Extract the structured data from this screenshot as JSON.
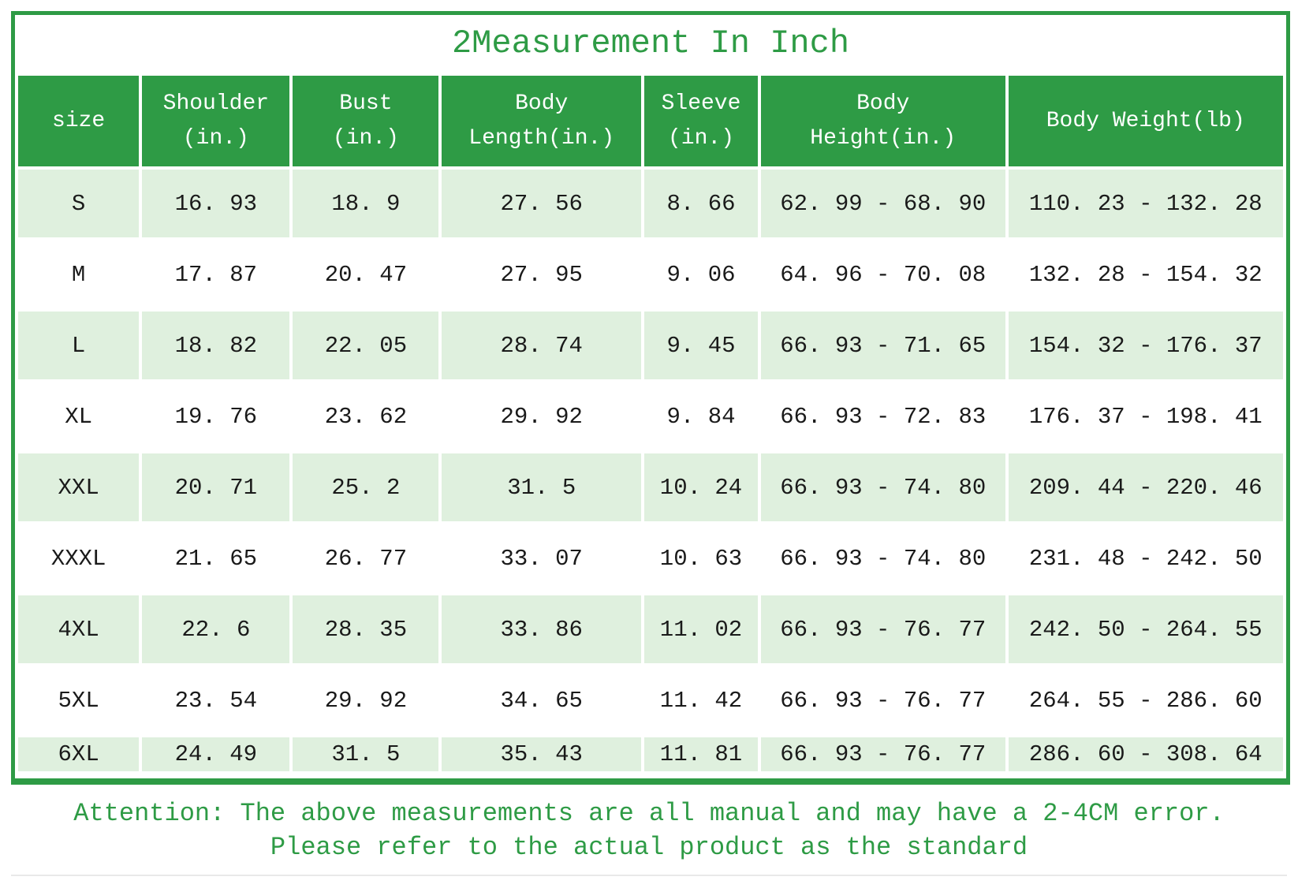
{
  "chart_data": {
    "type": "table",
    "title": "2Measurement In Inch",
    "columns": [
      "size",
      "Shoulder\n(in.)",
      "Bust\n(in.)",
      "Body\nLength(in.)",
      "Sleeve\n(in.)",
      "Body\nHeight(in.)",
      "Body Weight(lb)"
    ],
    "rows": [
      [
        "S",
        "16. 93",
        "18. 9",
        "27. 56",
        "8. 66",
        "62. 99 - 68. 90",
        "110. 23 - 132. 28"
      ],
      [
        "M",
        "17. 87",
        "20. 47",
        "27. 95",
        "9. 06",
        "64. 96 - 70. 08",
        "132. 28 - 154. 32"
      ],
      [
        "L",
        "18. 82",
        "22. 05",
        "28. 74",
        "9. 45",
        "66. 93 - 71. 65",
        "154. 32 - 176. 37"
      ],
      [
        "XL",
        "19. 76",
        "23. 62",
        "29. 92",
        "9. 84",
        "66. 93 - 72. 83",
        "176. 37 - 198. 41"
      ],
      [
        "XXL",
        "20. 71",
        "25. 2",
        "31. 5",
        "10. 24",
        "66. 93 - 74. 80",
        "209. 44 - 220. 46"
      ],
      [
        "XXXL",
        "21. 65",
        "26. 77",
        "33. 07",
        "10. 63",
        "66. 93 - 74. 80",
        "231. 48 - 242. 50"
      ],
      [
        "4XL",
        "22. 6",
        "28. 35",
        "33. 86",
        "11. 02",
        "66. 93 - 76. 77",
        "242. 50 - 264. 55"
      ],
      [
        "5XL",
        "23. 54",
        "29. 92",
        "34. 65",
        "11. 42",
        "66. 93 - 76. 77",
        "264. 55 - 286. 60"
      ],
      [
        "6XL",
        "24. 49",
        "31. 5",
        "35. 43",
        "11. 81",
        "66. 93 - 76. 77",
        "286. 60 - 308. 64"
      ]
    ]
  },
  "attention": {
    "line1": "Attention: The above measurements are all manual and may have a 2-4CM error.",
    "line2": "Please refer to the actual product as the standard"
  },
  "colors": {
    "green": "#2E9B45",
    "row_light": "#DFF0DE",
    "text_dark": "#1A1A1A"
  }
}
